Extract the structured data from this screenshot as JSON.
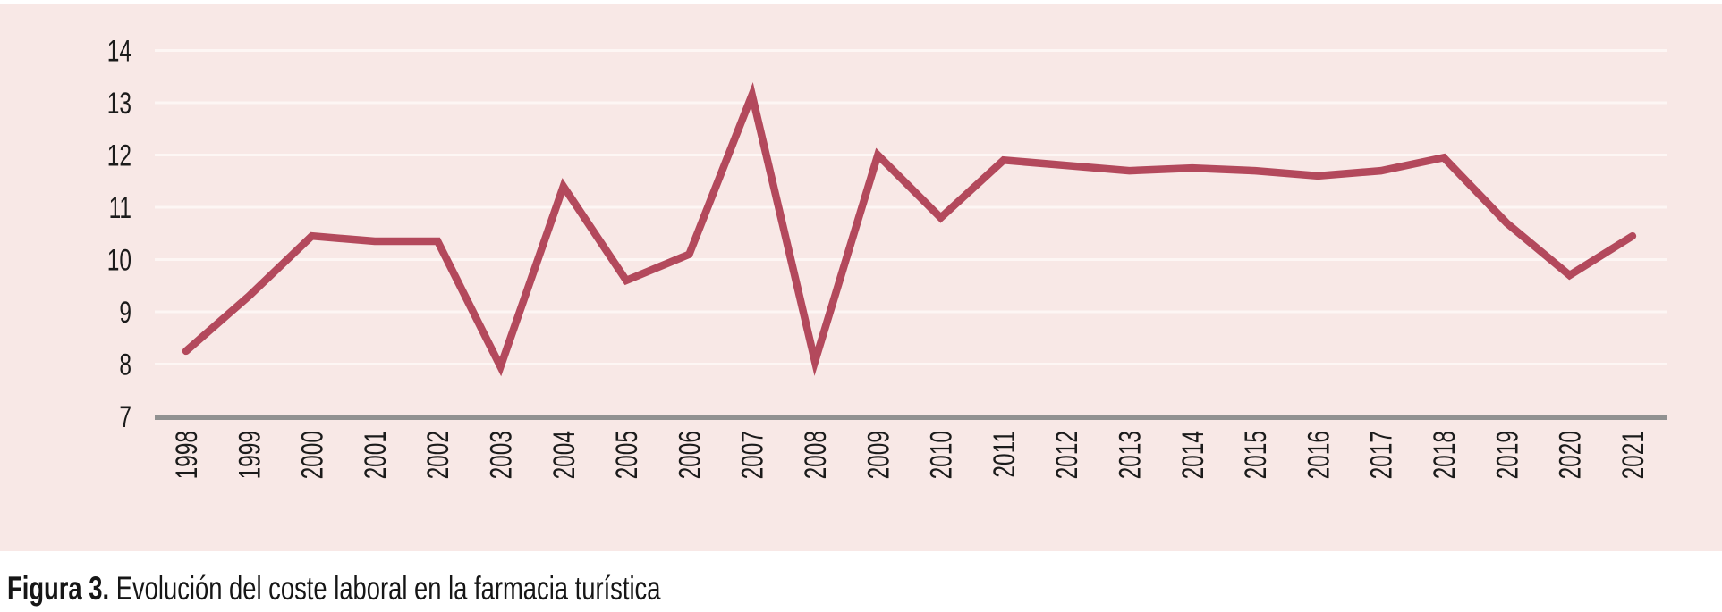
{
  "figure": {
    "label": "Figura 3.",
    "caption": " Evolución del coste laboral en la farmacia turística"
  },
  "chart_data": {
    "type": "line",
    "title": "",
    "xlabel": "",
    "ylabel": "",
    "x": [
      "1998",
      "1999",
      "2000",
      "2001",
      "2002",
      "2003",
      "2004",
      "2005",
      "2006",
      "2007",
      "2008",
      "2009",
      "2010",
      "2011",
      "2012",
      "2013",
      "2014",
      "2015",
      "2016",
      "2017",
      "2018",
      "2019",
      "2020",
      "2021"
    ],
    "values": [
      8.25,
      9.3,
      10.45,
      10.35,
      10.35,
      7.95,
      11.4,
      9.6,
      10.1,
      13.15,
      8.05,
      12.0,
      10.8,
      11.9,
      11.8,
      11.7,
      11.75,
      11.7,
      11.6,
      11.7,
      11.95,
      10.7,
      9.7,
      10.45
    ],
    "ylim": [
      7,
      14
    ],
    "yticks": [
      7,
      8,
      9,
      10,
      11,
      12,
      13,
      14
    ],
    "grid": true,
    "legend": "none",
    "colors": {
      "line": "#b3495c",
      "panel_background": "#f8e8e6",
      "gridline": "#fdf6f4",
      "axis_line": "#919191",
      "tick_text": "#1b1b1b"
    }
  }
}
